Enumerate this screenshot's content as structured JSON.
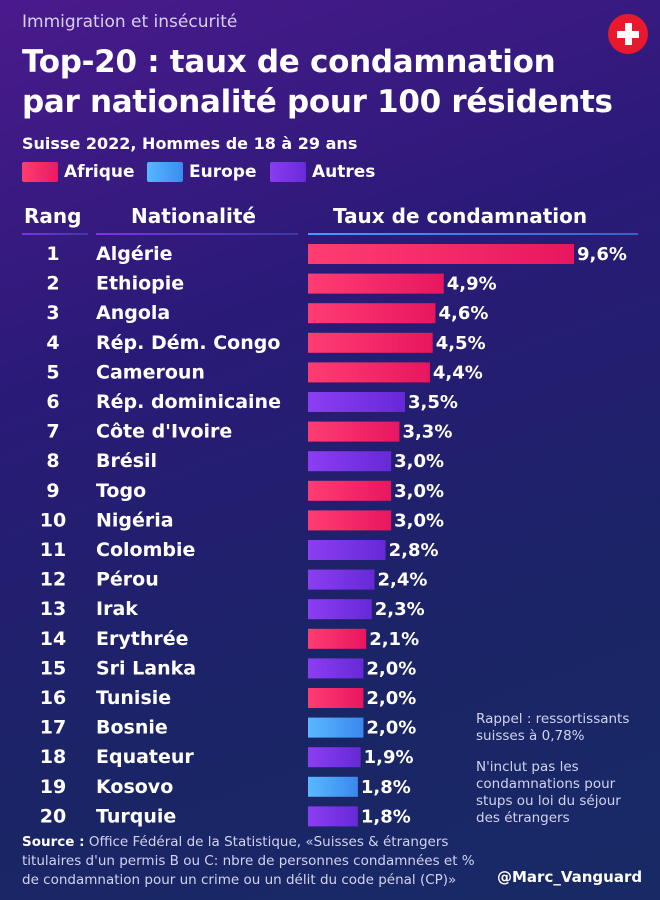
{
  "header": {
    "kicker": "Immigration et insécurité",
    "title_line1": "Top-20 : taux de condamnation",
    "title_line2": "par nationalité pour 100 résidents",
    "subtitle": "Suisse 2022, Hommes de 18 à 29 ans",
    "flag_icon": "swiss-flag-icon"
  },
  "legend": [
    {
      "label": "Afrique",
      "color": "#ff2d6e"
    },
    {
      "label": "Europe",
      "color": "#49a6ff"
    },
    {
      "label": "Autres",
      "color": "#7a35e8"
    }
  ],
  "columns": {
    "rank": "Rang",
    "nationality": "Nationalité",
    "rate": "Taux de condamnation"
  },
  "chart_data": {
    "type": "bar",
    "orientation": "horizontal",
    "title": "Top-20 : taux de condamnation par nationalité pour 100 résidents",
    "subtitle": "Suisse 2022, Hommes de 18 à 29 ans",
    "unit": "%",
    "xlim": [
      0,
      9.6
    ],
    "ranks": [
      1,
      2,
      3,
      4,
      5,
      6,
      7,
      8,
      9,
      10,
      11,
      12,
      13,
      14,
      15,
      16,
      17,
      18,
      19,
      20
    ],
    "categories": [
      "Algérie",
      "Ethiopie",
      "Angola",
      "Rép. Dém. Congo",
      "Cameroun",
      "Rép. dominicaine",
      "Côte d'Ivoire",
      "Brésil",
      "Togo",
      "Nigéria",
      "Colombie",
      "Pérou",
      "Irak",
      "Erythrée",
      "Sri Lanka",
      "Tunisie",
      "Bosnie",
      "Equateur",
      "Kosovo",
      "Turquie"
    ],
    "values": [
      9.6,
      4.9,
      4.6,
      4.5,
      4.4,
      3.5,
      3.3,
      3.0,
      3.0,
      3.0,
      2.8,
      2.4,
      2.3,
      2.1,
      2.0,
      2.0,
      2.0,
      1.9,
      1.8,
      1.8
    ],
    "labels": [
      "9,6%",
      "4,9%",
      "4,6%",
      "4,5%",
      "4,4%",
      "3,5%",
      "3,3%",
      "3,0%",
      "3,0%",
      "3,0%",
      "2,8%",
      "2,4%",
      "2,3%",
      "2,1%",
      "2,0%",
      "2,0%",
      "2,0%",
      "1,9%",
      "1,8%",
      "1,8%"
    ],
    "groups": [
      "Afrique",
      "Afrique",
      "Afrique",
      "Afrique",
      "Afrique",
      "Autres",
      "Afrique",
      "Autres",
      "Afrique",
      "Afrique",
      "Autres",
      "Autres",
      "Autres",
      "Afrique",
      "Autres",
      "Afrique",
      "Europe",
      "Autres",
      "Europe",
      "Autres"
    ],
    "group_colors": {
      "Afrique": "#ff2d6e",
      "Europe": "#49a6ff",
      "Autres": "#7a35e8"
    }
  },
  "notes": {
    "reminder": "Rappel : ressortissants suisses à 0,78%",
    "exclusion": "N'inclut pas les condamnations pour stups ou loi du séjour des étrangers"
  },
  "footer": {
    "source_label": "Source :",
    "source_text": "Office Fédéral de la Statistique, «Suisses & étrangers titulaires d'un permis B ou C: nbre de personnes condamnées et % de condamnation pour un crime ou un délit du code pénal (CP)»",
    "handle": "@Marc_Vanguard"
  }
}
